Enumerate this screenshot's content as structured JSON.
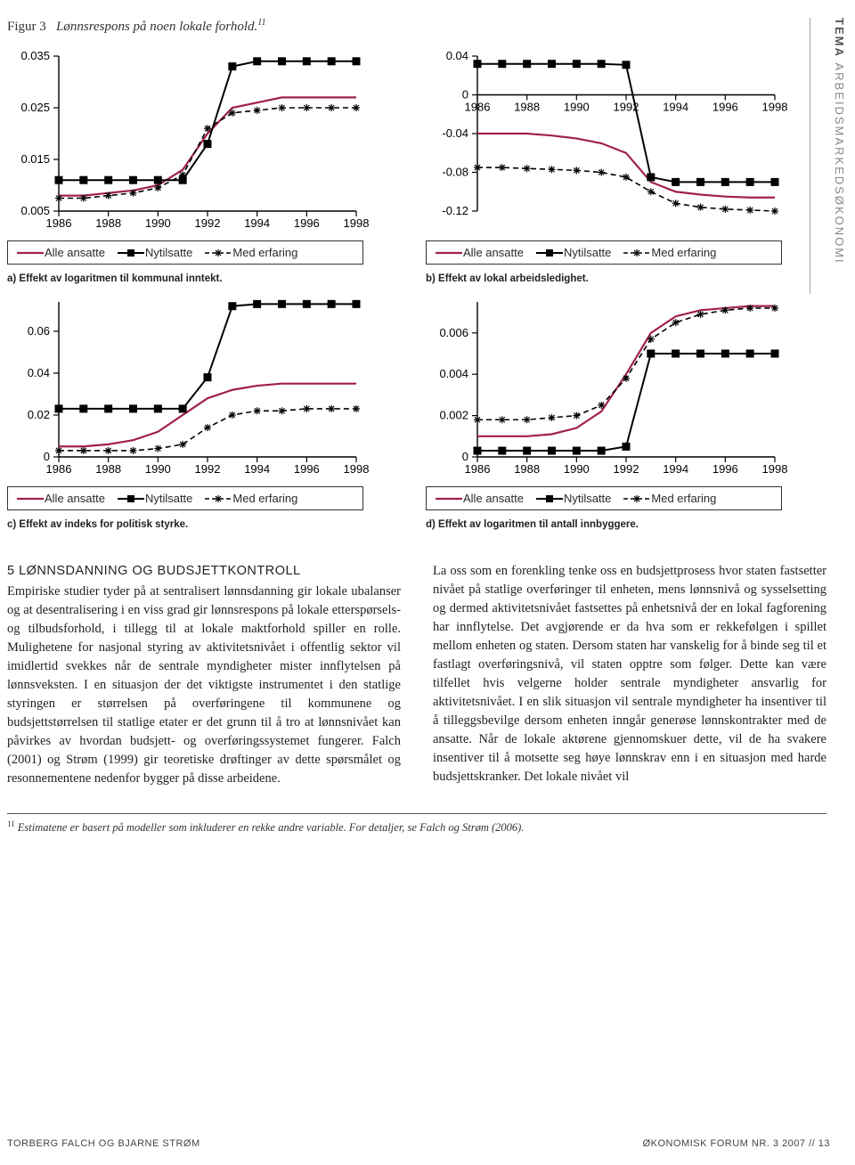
{
  "figure": {
    "label": "Figur 3",
    "title": "Lønnsrespons på noen lokale forhold.",
    "footnote_mark": "11"
  },
  "sidebar": {
    "bold": "TEMA",
    "rest": "ARBEIDSMARKEDSØKONOMI"
  },
  "legend": {
    "alle": "Alle ansatte",
    "ny": "Nytilsatte",
    "med": "Med erfaring",
    "colors": {
      "alle": "#a02050",
      "ny": "#000000",
      "med": "#000000"
    }
  },
  "axis_font_size": 13,
  "x_ticks": [
    "1986",
    "1988",
    "1990",
    "1992",
    "1994",
    "1996",
    "1998"
  ],
  "panels": {
    "a": {
      "caption": "a) Effekt av logaritmen til kommunal inntekt.",
      "y_ticks": [
        "0.005",
        "0.015",
        "0.025",
        "0.035"
      ],
      "ylim": [
        0.005,
        0.035
      ],
      "xlim": [
        1986,
        1998
      ],
      "series": {
        "alle": {
          "x": [
            1986,
            1987,
            1988,
            1989,
            1990,
            1991,
            1992,
            1993,
            1994,
            1995,
            1996,
            1997,
            1998
          ],
          "y": [
            0.008,
            0.008,
            0.0085,
            0.009,
            0.01,
            0.013,
            0.02,
            0.025,
            0.026,
            0.027,
            0.027,
            0.027,
            0.027
          ]
        },
        "ny": {
          "x": [
            1986,
            1987,
            1988,
            1989,
            1990,
            1991,
            1992,
            1993,
            1994,
            1995,
            1996,
            1997,
            1998
          ],
          "y": [
            0.011,
            0.011,
            0.011,
            0.011,
            0.011,
            0.011,
            0.018,
            0.033,
            0.034,
            0.034,
            0.034,
            0.034,
            0.034
          ]
        },
        "med": {
          "x": [
            1986,
            1987,
            1988,
            1989,
            1990,
            1991,
            1992,
            1993,
            1994,
            1995,
            1996,
            1997,
            1998
          ],
          "y": [
            0.0075,
            0.0075,
            0.008,
            0.0085,
            0.0095,
            0.012,
            0.021,
            0.024,
            0.0245,
            0.025,
            0.025,
            0.025,
            0.025
          ]
        }
      }
    },
    "b": {
      "caption": "b) Effekt av lokal arbeidsledighet.",
      "y_ticks": [
        "-0.12",
        "-0.08",
        "-0.04",
        "0",
        "0.04"
      ],
      "ylim": [
        -0.12,
        0.04
      ],
      "xlim": [
        1986,
        1998
      ],
      "series": {
        "alle": {
          "x": [
            1986,
            1987,
            1988,
            1989,
            1990,
            1991,
            1992,
            1993,
            1994,
            1995,
            1996,
            1997,
            1998
          ],
          "y": [
            -0.04,
            -0.04,
            -0.04,
            -0.042,
            -0.045,
            -0.05,
            -0.06,
            -0.09,
            -0.1,
            -0.103,
            -0.105,
            -0.106,
            -0.106
          ]
        },
        "ny": {
          "x": [
            1986,
            1987,
            1988,
            1989,
            1990,
            1991,
            1992,
            1993,
            1994,
            1995,
            1996,
            1997,
            1998
          ],
          "y": [
            0.032,
            0.032,
            0.032,
            0.032,
            0.032,
            0.032,
            0.031,
            -0.085,
            -0.09,
            -0.09,
            -0.09,
            -0.09,
            -0.09
          ]
        },
        "med": {
          "x": [
            1986,
            1987,
            1988,
            1989,
            1990,
            1991,
            1992,
            1993,
            1994,
            1995,
            1996,
            1997,
            1998
          ],
          "y": [
            -0.075,
            -0.075,
            -0.076,
            -0.077,
            -0.078,
            -0.08,
            -0.085,
            -0.1,
            -0.112,
            -0.116,
            -0.118,
            -0.119,
            -0.12
          ]
        }
      }
    },
    "c": {
      "caption": "c) Effekt av indeks for politisk styrke.",
      "y_ticks": [
        "0",
        "0.02",
        "0.04",
        "0.06"
      ],
      "ylim": [
        0,
        0.074
      ],
      "xlim": [
        1986,
        1998
      ],
      "series": {
        "alle": {
          "x": [
            1986,
            1987,
            1988,
            1989,
            1990,
            1991,
            1992,
            1993,
            1994,
            1995,
            1996,
            1997,
            1998
          ],
          "y": [
            0.005,
            0.005,
            0.006,
            0.008,
            0.012,
            0.02,
            0.028,
            0.032,
            0.034,
            0.035,
            0.035,
            0.035,
            0.035
          ]
        },
        "ny": {
          "x": [
            1986,
            1987,
            1988,
            1989,
            1990,
            1991,
            1992,
            1993,
            1994,
            1995,
            1996,
            1997,
            1998
          ],
          "y": [
            0.023,
            0.023,
            0.023,
            0.023,
            0.023,
            0.023,
            0.038,
            0.072,
            0.073,
            0.073,
            0.073,
            0.073,
            0.073
          ]
        },
        "med": {
          "x": [
            1986,
            1987,
            1988,
            1989,
            1990,
            1991,
            1992,
            1993,
            1994,
            1995,
            1996,
            1997,
            1998
          ],
          "y": [
            0.003,
            0.003,
            0.003,
            0.003,
            0.004,
            0.006,
            0.014,
            0.02,
            0.022,
            0.022,
            0.023,
            0.023,
            0.023
          ]
        }
      }
    },
    "d": {
      "caption": "d) Effekt av logaritmen til antall innbyggere.",
      "y_ticks": [
        "0",
        "0.002",
        "0.004",
        "0.006"
      ],
      "ylim": [
        0,
        0.0075
      ],
      "xlim": [
        1986,
        1998
      ],
      "series": {
        "alle": {
          "x": [
            1986,
            1987,
            1988,
            1989,
            1990,
            1991,
            1992,
            1993,
            1994,
            1995,
            1996,
            1997,
            1998
          ],
          "y": [
            0.001,
            0.001,
            0.001,
            0.0011,
            0.0014,
            0.0022,
            0.004,
            0.006,
            0.0068,
            0.0071,
            0.0072,
            0.0073,
            0.0073
          ]
        },
        "ny": {
          "x": [
            1986,
            1987,
            1988,
            1989,
            1990,
            1991,
            1992,
            1993,
            1994,
            1995,
            1996,
            1997,
            1998
          ],
          "y": [
            0.0003,
            0.0003,
            0.0003,
            0.0003,
            0.0003,
            0.0003,
            0.0005,
            0.005,
            0.005,
            0.005,
            0.005,
            0.005,
            0.005
          ]
        },
        "med": {
          "x": [
            1986,
            1987,
            1988,
            1989,
            1990,
            1991,
            1992,
            1993,
            1994,
            1995,
            1996,
            1997,
            1998
          ],
          "y": [
            0.0018,
            0.0018,
            0.0018,
            0.0019,
            0.002,
            0.0025,
            0.0038,
            0.0057,
            0.0065,
            0.0069,
            0.0071,
            0.0072,
            0.0072
          ]
        }
      }
    }
  },
  "section": {
    "heading": "5  LØNNSDANNING OG BUDSJETTKONTROLL",
    "col1": "Empiriske studier tyder på at sentralisert lønnsdanning gir lokale ubalanser og at desentralisering i en viss grad gir lønnsrespons på lokale etterspørsels- og tilbudsforhold, i tillegg til at lokale maktforhold spiller en rolle. Mulighetene for nasjonal styring av aktivitetsnivået i offentlig sektor vil imidlertid svekkes når de sentrale myndigheter mister innflytelsen på lønnsveksten. I en situasjon der det viktigste instrumentet i den statlige styringen er størrelsen på overføringene til kommunene og budsjettstørrelsen til statlige etater er det grunn til å tro at lønnsnivået kan påvirkes av hvordan budsjett- og overføringssystemet fungerer. Falch (2001) og Strøm (1999) gir teoretiske drøftinger av dette spørsmålet og resonnementene nedenfor bygger på disse arbeidene.",
    "col2": "La oss som en forenkling tenke oss en budsjettprosess hvor staten fastsetter nivået på statlige overføringer til enheten, mens lønnsnivå og sysselsetting og dermed aktivitetsnivået fastsettes på enhetsnivå der en lokal fagforening har innflytelse. Det avgjørende er da hva som er rekkefølgen i spillet mellom enheten og staten. Dersom staten har vanskelig for å binde seg til et fastlagt overføringsnivå, vil staten opptre som følger. Dette kan være tilfellet hvis velgerne holder sentrale myndigheter ansvarlig for aktivitetsnivået. I en slik situasjon vil sentrale myndigheter ha insentiver til å tilleggsbevilge dersom enheten inngår generøse lønnskontrakter med de ansatte. Når de lokale aktørene gjennomskuer dette, vil de ha svakere insentiver til å motsette seg høye lønnskrav enn i en situasjon med harde budsjettskranker. Det lokale nivået vil"
  },
  "footnote": {
    "mark": "11",
    "text": "Estimatene er basert på modeller som inkluderer en rekke andre variable. For detaljer, se Falch og Strøm (2006)."
  },
  "footer": {
    "left": "TORBERG FALCH OG BJARNE STRØM",
    "right": "ØKONOMISK FORUM NR. 3  2007  //  13"
  }
}
